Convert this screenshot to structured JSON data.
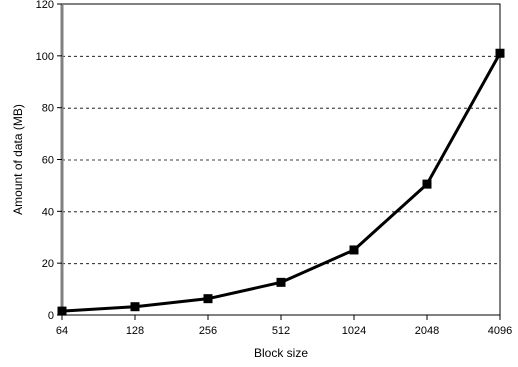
{
  "chart_data": {
    "type": "line",
    "title": "",
    "xlabel": "Block size",
    "ylabel": "Amount of data (MB)",
    "categories": [
      "64",
      "128",
      "256",
      "512",
      "1024",
      "2048",
      "4096"
    ],
    "series": [
      {
        "values": [
          1.5,
          3.2,
          6.3,
          12.6,
          25.1,
          50.5,
          101
        ]
      }
    ],
    "yticks": [
      0,
      20,
      40,
      60,
      80,
      100,
      120
    ],
    "ylim": [
      0,
      120
    ],
    "grid": "horizontal-dashed",
    "legend": "none",
    "colors": {
      "line": "#000000",
      "marker": "#000000",
      "grid": "#000000",
      "axis": "#808080"
    }
  }
}
